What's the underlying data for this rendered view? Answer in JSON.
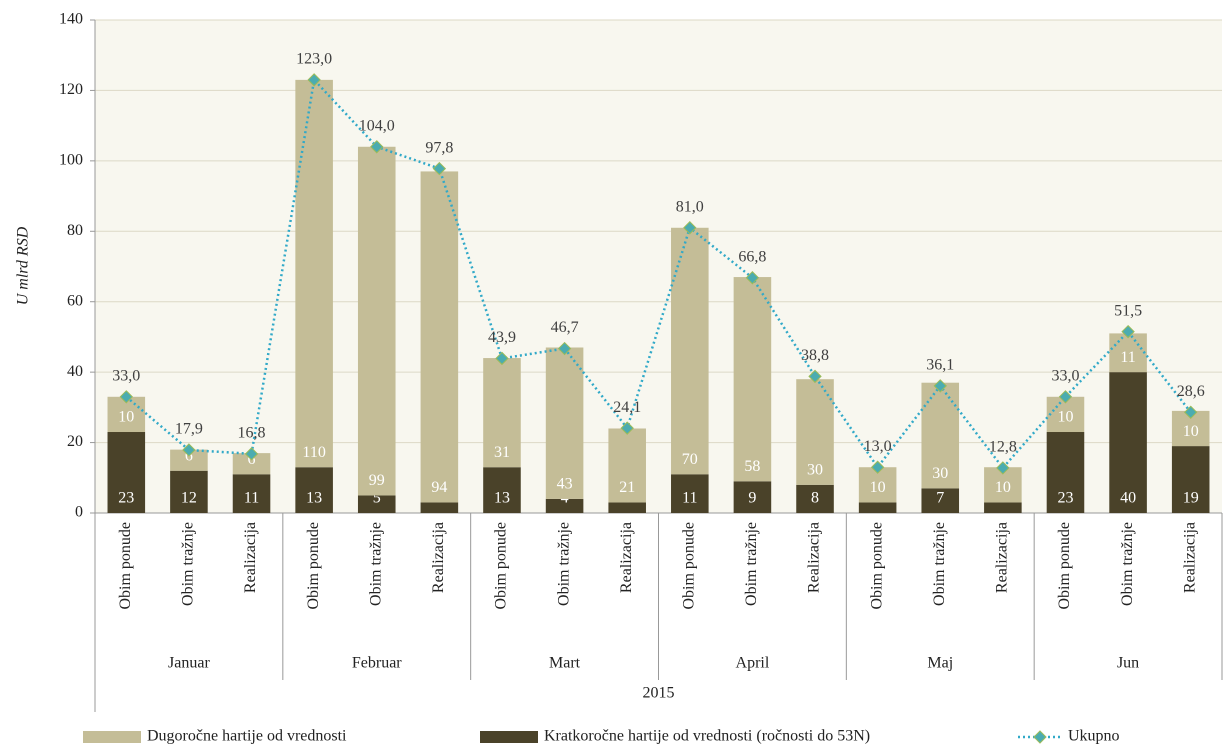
{
  "chart_data": {
    "type": "bar",
    "stacked": true,
    "y_label": "U mlrd RSD",
    "categories": [
      "Obim ponude",
      "Obim tražnje",
      "Realizacija",
      "Obim ponude",
      "Obim tražnje",
      "Realizacija",
      "Obim ponude",
      "Obim tražnje",
      "Realizacija",
      "Obim ponude",
      "Obim tražnje",
      "Realizacija",
      "Obim ponude",
      "Obim tražnje",
      "Realizacija",
      "Obim ponude",
      "Obim tražnje",
      "Realizacija"
    ],
    "group_labels": [
      "Januar",
      "Februar",
      "Mart",
      "April",
      "Maj",
      "Jun"
    ],
    "x_group_label": "2015",
    "ylim": [
      0,
      140
    ],
    "yticks": [
      0,
      20,
      40,
      60,
      80,
      100,
      120,
      140
    ],
    "grid": true,
    "legend": "bottom",
    "series": [
      {
        "name": "Dugoročne hartije od vrednosti",
        "color": "#c4bd97",
        "values": [
          10,
          6,
          6,
          110,
          99,
          94,
          31,
          43,
          21,
          70,
          58,
          30,
          10,
          30,
          10,
          10,
          11,
          10
        ]
      },
      {
        "name": "Kratkoročne hartije od vrednosti (ročnosti do 53N)",
        "color": "#4a4229",
        "values": [
          23,
          12,
          11,
          13,
          5,
          3,
          13,
          4,
          3,
          11,
          9,
          8,
          3,
          7,
          3,
          23,
          40,
          19
        ]
      },
      {
        "name": "Ukupno",
        "type": "line",
        "color": "#31a9c8",
        "marker_color": "#4bacb0",
        "values": [
          33.0,
          17.9,
          16.8,
          123.0,
          104.0,
          97.8,
          43.9,
          46.7,
          24.1,
          81.0,
          66.8,
          38.8,
          13.0,
          36.1,
          12.8,
          33.0,
          51.5,
          28.6
        ],
        "value_labels": [
          "33,0",
          "17,9",
          "16,8",
          "123,0",
          "104,0",
          "97,8",
          "43,9",
          "46,7",
          "24,1",
          "81,0",
          "66,8",
          "38,8",
          "13,0",
          "36,1",
          "12,8",
          "33,0",
          "51,5",
          "28,6"
        ]
      }
    ]
  }
}
